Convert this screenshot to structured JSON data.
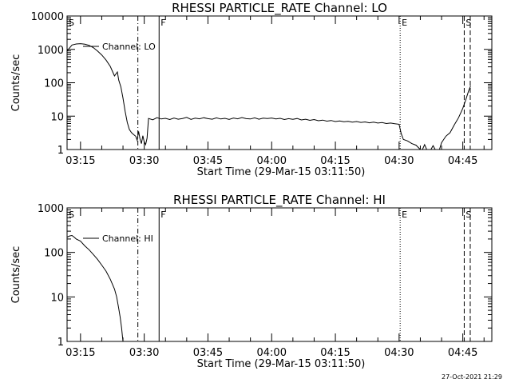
{
  "footer": {
    "timestamp": "27-Oct-2021 21:29"
  },
  "chart_data": [
    {
      "type": "line",
      "title": "RHESSI PARTICLE_RATE Channel: LO",
      "xlabel": "Start Time (29-Mar-15 03:11:50)",
      "ylabel": "Counts/sec",
      "y_scale": "log",
      "ylim": [
        1,
        10000
      ],
      "y_ticks": [
        {
          "value": 1,
          "label": "1"
        },
        {
          "value": 10,
          "label": "10"
        },
        {
          "value": 100,
          "label": "100"
        },
        {
          "value": 1000,
          "label": "1000"
        },
        {
          "value": 10000,
          "label": "10000"
        }
      ],
      "xlim": [
        "03:11:50",
        "04:51:50"
      ],
      "x_ticks": [
        "03:15",
        "03:30",
        "03:45",
        "04:00",
        "04:15",
        "04:30",
        "04:45"
      ],
      "legend": "Channel: LO",
      "legend_position": "top-left",
      "series": [
        {
          "name": "Channel: LO",
          "points": [
            [
              "03:11:50",
              900
            ],
            [
              "03:13:00",
              1350
            ],
            [
              "03:14:00",
              1450
            ],
            [
              "03:15:00",
              1480
            ],
            [
              "03:16:00",
              1430
            ],
            [
              "03:17:00",
              1320
            ],
            [
              "03:18:00",
              1130
            ],
            [
              "03:19:00",
              900
            ],
            [
              "03:20:00",
              680
            ],
            [
              "03:21:00",
              480
            ],
            [
              "03:22:00",
              310
            ],
            [
              "03:23:00",
              160
            ],
            [
              "03:23:40",
              210
            ],
            [
              "03:24:00",
              120
            ],
            [
              "03:24:30",
              75
            ],
            [
              "03:25:00",
              35
            ],
            [
              "03:25:30",
              14
            ],
            [
              "03:26:00",
              6.5
            ],
            [
              "03:26:30",
              4.0
            ],
            [
              "03:27:00",
              3.2
            ],
            [
              "03:27:30",
              2.8
            ],
            [
              "03:28:00",
              2.5
            ],
            [
              "03:28:20",
              1.9
            ],
            [
              "03:28:40",
              3.5
            ],
            [
              "03:29:00",
              2.1
            ],
            [
              "03:29:20",
              1.5
            ],
            [
              "03:29:40",
              2.6
            ],
            [
              "03:30:00",
              1.7
            ],
            [
              "03:30:20",
              1.4
            ],
            [
              "03:30:40",
              2.2
            ],
            [
              "03:31:00",
              8.5
            ],
            [
              "03:32:00",
              7.8
            ],
            [
              "03:33:00",
              9.0
            ],
            [
              "03:34:00",
              8.2
            ],
            [
              "03:35:00",
              8.6
            ],
            [
              "03:36:00",
              7.9
            ],
            [
              "03:37:00",
              8.8
            ],
            [
              "03:38:00",
              8.1
            ],
            [
              "03:39:00",
              8.5
            ],
            [
              "03:40:00",
              9.2
            ],
            [
              "03:41:00",
              8.0
            ],
            [
              "03:42:00",
              8.7
            ],
            [
              "03:43:00",
              8.3
            ],
            [
              "03:44:00",
              9.0
            ],
            [
              "03:45:00",
              8.4
            ],
            [
              "03:46:00",
              8.1
            ],
            [
              "03:47:00",
              8.9
            ],
            [
              "03:48:00",
              8.2
            ],
            [
              "03:49:00",
              8.6
            ],
            [
              "03:50:00",
              8.0
            ],
            [
              "03:51:00",
              8.8
            ],
            [
              "03:52:00",
              8.3
            ],
            [
              "03:53:00",
              9.1
            ],
            [
              "03:54:00",
              8.4
            ],
            [
              "03:55:00",
              8.2
            ],
            [
              "03:56:00",
              8.9
            ],
            [
              "03:57:00",
              8.1
            ],
            [
              "03:58:00",
              8.7
            ],
            [
              "03:59:00",
              8.5
            ],
            [
              "04:00:00",
              8.8
            ],
            [
              "04:01:00",
              8.2
            ],
            [
              "04:02:00",
              8.6
            ],
            [
              "04:03:00",
              7.9
            ],
            [
              "04:04:00",
              8.4
            ],
            [
              "04:05:00",
              8.0
            ],
            [
              "04:06:00",
              8.5
            ],
            [
              "04:07:00",
              7.7
            ],
            [
              "04:08:00",
              8.1
            ],
            [
              "04:09:00",
              7.5
            ],
            [
              "04:10:00",
              7.9
            ],
            [
              "04:11:00",
              7.3
            ],
            [
              "04:12:00",
              7.6
            ],
            [
              "04:13:00",
              7.1
            ],
            [
              "04:14:00",
              7.4
            ],
            [
              "04:15:00",
              6.9
            ],
            [
              "04:16:00",
              7.2
            ],
            [
              "04:17:00",
              6.8
            ],
            [
              "04:18:00",
              7.0
            ],
            [
              "04:19:00",
              6.6
            ],
            [
              "04:20:00",
              6.9
            ],
            [
              "04:21:00",
              6.5
            ],
            [
              "04:22:00",
              6.7
            ],
            [
              "04:23:00",
              6.3
            ],
            [
              "04:24:00",
              6.6
            ],
            [
              "04:25:00",
              6.2
            ],
            [
              "04:26:00",
              6.4
            ],
            [
              "04:27:00",
              6.0
            ],
            [
              "04:28:00",
              6.2
            ],
            [
              "04:29:00",
              5.9
            ],
            [
              "04:30:00",
              5.7
            ],
            [
              "04:30:30",
              3.0
            ],
            [
              "04:31:00",
              2.0
            ],
            [
              "04:32:00",
              1.8
            ],
            [
              "04:33:00",
              1.5
            ],
            [
              "04:34:00",
              1.35
            ],
            [
              "04:35:00",
              1.0
            ],
            [
              "04:35:30",
              1.0
            ],
            [
              "04:36:00",
              1.4
            ],
            [
              "04:36:30",
              1.0
            ],
            [
              "04:37:30",
              1.0
            ],
            [
              "04:38:00",
              1.3
            ],
            [
              "04:38:30",
              1.0
            ],
            [
              "04:39:30",
              1.0
            ],
            [
              "04:40:00",
              1.6
            ],
            [
              "04:41:00",
              2.5
            ],
            [
              "04:42:00",
              3.2
            ],
            [
              "04:43:00",
              5.5
            ],
            [
              "04:44:00",
              9.0
            ],
            [
              "04:45:00",
              17
            ],
            [
              "04:45:40",
              30
            ],
            [
              "04:46:20",
              55
            ],
            [
              "04:46:50",
              80
            ]
          ]
        }
      ],
      "markers": [
        {
          "label": "S",
          "time": "03:11:50",
          "style": "dotted",
          "draw_line": false
        },
        {
          "label": "",
          "time": "03:28:30",
          "style": "dashdot",
          "draw_line": true
        },
        {
          "label": "F",
          "time": "03:33:30",
          "style": "solid",
          "draw_line": true
        },
        {
          "label": "E",
          "time": "04:30:15",
          "style": "dotted",
          "draw_line": true
        },
        {
          "label": "S",
          "time": "04:45:20",
          "style": "dashed",
          "draw_line": true
        },
        {
          "label": "",
          "time": "04:46:45",
          "style": "dashed",
          "draw_line": true
        }
      ]
    },
    {
      "type": "line",
      "title": "RHESSI PARTICLE_RATE Channel: HI",
      "xlabel": "Start Time (29-Mar-15 03:11:50)",
      "ylabel": "Counts/sec",
      "y_scale": "log",
      "ylim": [
        1,
        1000
      ],
      "y_ticks": [
        {
          "value": 1,
          "label": "1"
        },
        {
          "value": 10,
          "label": "10"
        },
        {
          "value": 100,
          "label": "100"
        },
        {
          "value": 1000,
          "label": "1000"
        }
      ],
      "xlim": [
        "03:11:50",
        "04:51:50"
      ],
      "x_ticks": [
        "03:15",
        "03:30",
        "03:45",
        "04:00",
        "04:15",
        "04:30",
        "04:45"
      ],
      "legend": "Channel: HI",
      "legend_position": "top-left",
      "series": [
        {
          "name": "Channel: HI",
          "points": [
            [
              "03:11:50",
              220
            ],
            [
              "03:12:30",
              235
            ],
            [
              "03:13:00",
              240
            ],
            [
              "03:13:30",
              220
            ],
            [
              "03:14:00",
              200
            ],
            [
              "03:15:00",
              180
            ],
            [
              "03:16:00",
              140
            ],
            [
              "03:17:00",
              115
            ],
            [
              "03:18:00",
              90
            ],
            [
              "03:19:00",
              70
            ],
            [
              "03:20:00",
              52
            ],
            [
              "03:21:00",
              38
            ],
            [
              "03:22:00",
              25
            ],
            [
              "03:23:00",
              15
            ],
            [
              "03:23:30",
              10
            ],
            [
              "03:24:00",
              5.5
            ],
            [
              "03:24:20",
              3.5
            ],
            [
              "03:24:40",
              2.0
            ],
            [
              "03:25:00",
              1.0
            ]
          ]
        }
      ],
      "markers": [
        {
          "label": "S",
          "time": "03:11:50",
          "style": "dotted",
          "draw_line": false
        },
        {
          "label": "",
          "time": "03:28:30",
          "style": "dashdot",
          "draw_line": true
        },
        {
          "label": "F",
          "time": "03:33:30",
          "style": "solid",
          "draw_line": true
        },
        {
          "label": "E",
          "time": "04:30:15",
          "style": "dotted",
          "draw_line": true
        },
        {
          "label": "S",
          "time": "04:45:20",
          "style": "dashed",
          "draw_line": true
        },
        {
          "label": "",
          "time": "04:46:45",
          "style": "dashed",
          "draw_line": true
        }
      ]
    }
  ]
}
